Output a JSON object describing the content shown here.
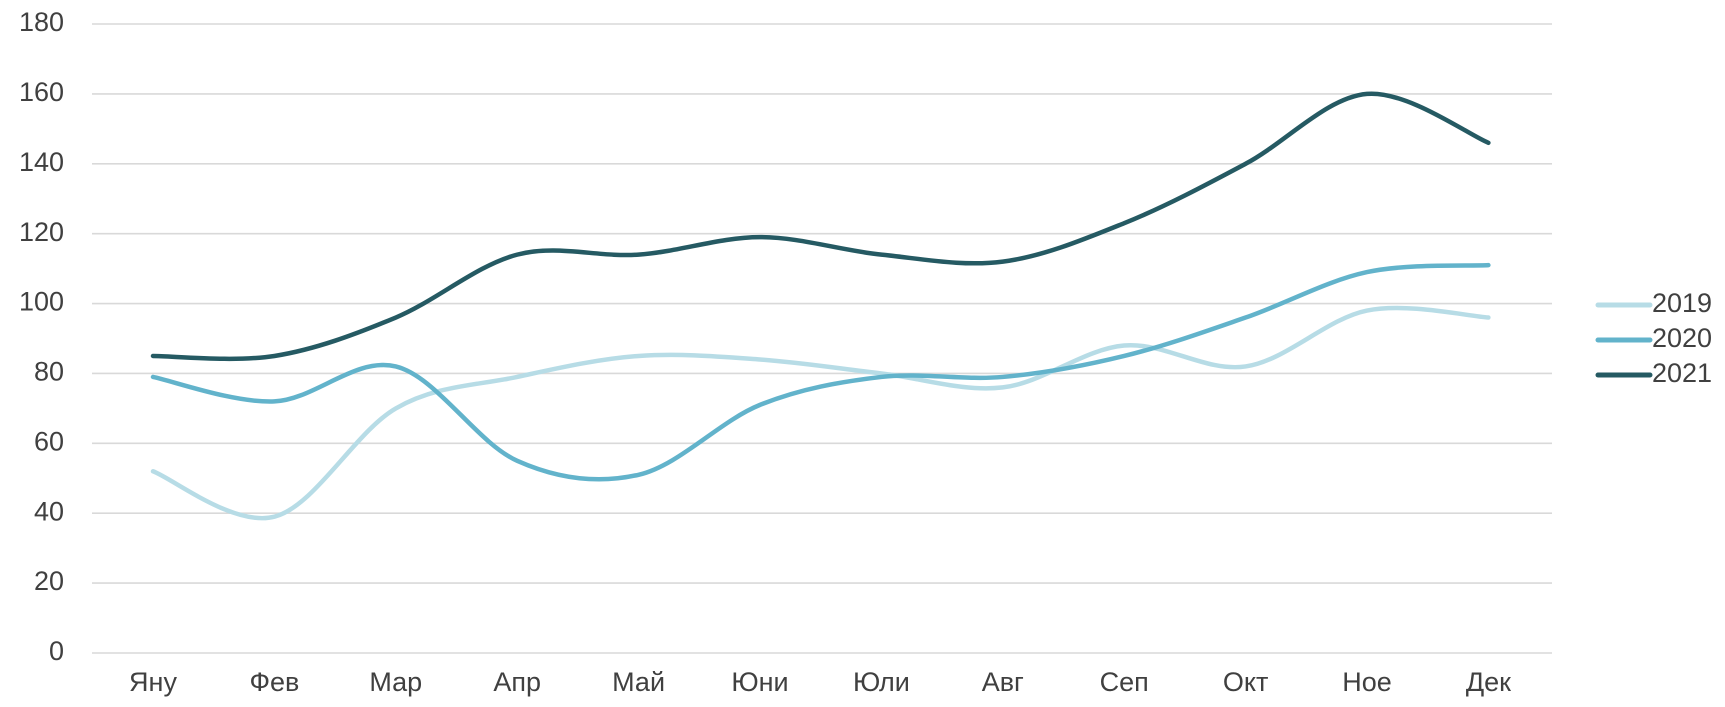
{
  "chart_data": {
    "type": "line",
    "smooth": true,
    "categories": [
      "Яну",
      "Фев",
      "Мар",
      "Апр",
      "Май",
      "Юни",
      "Юли",
      "Авг",
      "Сеп",
      "Окт",
      "Ное",
      "Дек"
    ],
    "ylim": [
      0,
      180
    ],
    "yticks": [
      0,
      20,
      40,
      60,
      80,
      100,
      120,
      140,
      160,
      180
    ],
    "grid": true,
    "legend": "right",
    "series": [
      {
        "name": "2019",
        "color": "#b7dce6",
        "values": [
          52,
          39,
          70,
          79,
          85,
          84,
          80,
          76,
          88,
          82,
          98,
          96
        ]
      },
      {
        "name": "2020",
        "color": "#62b3cb",
        "values": [
          79,
          72,
          82,
          55,
          51,
          71,
          79,
          79,
          85,
          96,
          109,
          111
        ]
      },
      {
        "name": "2021",
        "color": "#255a63",
        "values": [
          85,
          85,
          96,
          114,
          114,
          119,
          114,
          112,
          123,
          140,
          160,
          146
        ]
      }
    ]
  }
}
